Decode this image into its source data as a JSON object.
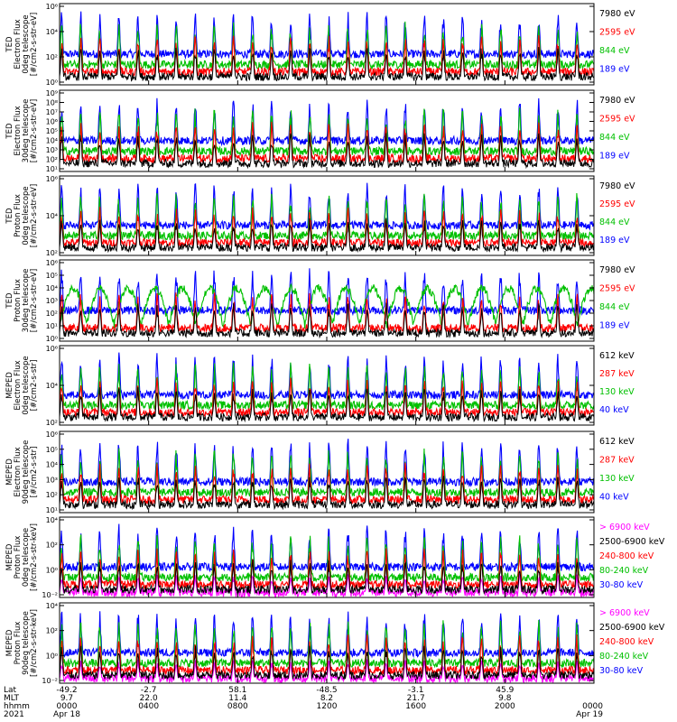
{
  "chart_data": {
    "type": "line",
    "panels": [
      {
        "ylabel_lines": [
          "TED",
          "Electron Flux",
          "0deg telescope",
          "[#/cm2-s-str-eV]"
        ],
        "yticks": [
          "10⁶",
          "10⁴",
          "10²",
          "10⁰"
        ],
        "legend": [
          {
            "text": "7980 eV",
            "color": "#000000"
          },
          {
            "text": "2595 eV",
            "color": "#ff0000"
          },
          {
            "text": "844 eV",
            "color": "#00c000"
          },
          {
            "text": "189 eV",
            "color": "#0000ff"
          }
        ]
      },
      {
        "ylabel_lines": [
          "TED",
          "Electron Flux",
          "30deg telescope",
          "[#/cm2-s-str-eV]"
        ],
        "yticks": [
          "10⁹",
          "10⁸",
          "10⁷",
          "10⁶",
          "10⁵",
          "10⁴",
          "10³",
          "10²",
          "10¹"
        ],
        "legend": [
          {
            "text": "7980 eV",
            "color": "#000000"
          },
          {
            "text": "2595 eV",
            "color": "#ff0000"
          },
          {
            "text": "844 eV",
            "color": "#00c000"
          },
          {
            "text": "189 eV",
            "color": "#0000ff"
          }
        ]
      },
      {
        "ylabel_lines": [
          "TED",
          "Proton Flux",
          "0deg telescope",
          "[#/cm2-s-str-eV]"
        ],
        "yticks": [
          "10⁶",
          "10⁴",
          "10²"
        ],
        "legend": [
          {
            "text": "7980 eV",
            "color": "#000000"
          },
          {
            "text": "2595 eV",
            "color": "#ff0000"
          },
          {
            "text": "844 eV",
            "color": "#00c000"
          },
          {
            "text": "189 eV",
            "color": "#0000ff"
          }
        ]
      },
      {
        "ylabel_lines": [
          "TED",
          "Proton Flux",
          "30deg telescope",
          "[#/cm2-s-str-eV]"
        ],
        "yticks": [
          "10⁶",
          "10⁵",
          "10⁴",
          "10³",
          "10²",
          "10¹",
          "10⁰"
        ],
        "legend": [
          {
            "text": "7980 eV",
            "color": "#000000"
          },
          {
            "text": "2595 eV",
            "color": "#ff0000"
          },
          {
            "text": "844 eV",
            "color": "#00c000"
          },
          {
            "text": "189 eV",
            "color": "#0000ff"
          }
        ]
      },
      {
        "ylabel_lines": [
          "MEPED",
          "Electron Flux",
          "0deg telescope",
          "[#/cm2-s-str]"
        ],
        "yticks": [
          "10⁶",
          "10⁴",
          "10²"
        ],
        "legend": [
          {
            "text": "612 keV",
            "color": "#000000"
          },
          {
            "text": "287 keV",
            "color": "#ff0000"
          },
          {
            "text": "130 keV",
            "color": "#00c000"
          },
          {
            "text": "40 keV",
            "color": "#0000ff"
          }
        ]
      },
      {
        "ylabel_lines": [
          "MEPED",
          "Electron Flux",
          "90deg telescope",
          "[#/cm2-s-str]"
        ],
        "yticks": [
          "10⁶",
          "10⁵",
          "10⁴",
          "10³",
          "10²",
          "10¹"
        ],
        "legend": [
          {
            "text": "612 keV",
            "color": "#000000"
          },
          {
            "text": "287 keV",
            "color": "#ff0000"
          },
          {
            "text": "130 keV",
            "color": "#00c000"
          },
          {
            "text": "40 keV",
            "color": "#0000ff"
          }
        ]
      },
      {
        "ylabel_lines": [
          "MEPED",
          "Proton Flux",
          "0deg telescope",
          "[#/cm2-s-str-keV]"
        ],
        "yticks": [
          "10⁴",
          "10²",
          "10⁰",
          "10⁻²"
        ],
        "legend": [
          {
            "text": "> 6900 keV",
            "color": "#ff00ff"
          },
          {
            "text": "2500-6900 keV",
            "color": "#000000"
          },
          {
            "text": "240-800 keV",
            "color": "#ff0000"
          },
          {
            "text": "80-240 keV",
            "color": "#00c000"
          },
          {
            "text": "30-80 keV",
            "color": "#0000ff"
          }
        ]
      },
      {
        "ylabel_lines": [
          "MEPED",
          "Proton Flux",
          "90deg telescope",
          "[#/cm2-s-str-keV]"
        ],
        "yticks": [
          "10⁴",
          "10²",
          "10⁰",
          "10⁻²"
        ],
        "legend": [
          {
            "text": "> 6900 keV",
            "color": "#ff00ff"
          },
          {
            "text": "2500-6900 keV",
            "color": "#000000"
          },
          {
            "text": "240-800 keV",
            "color": "#ff0000"
          },
          {
            "text": "80-240 keV",
            "color": "#00c000"
          },
          {
            "text": "30-80 keV",
            "color": "#0000ff"
          }
        ]
      }
    ],
    "x_axis": {
      "row_labels": [
        "Lat",
        "MLT",
        "hhmm",
        "2021"
      ],
      "ticks": [
        {
          "lat": "-49.2",
          "mlt": "9.7",
          "hhmm": "0000",
          "date": "Apr 18"
        },
        {
          "lat": "-2.7",
          "mlt": "22.0",
          "hhmm": "0400",
          "date": ""
        },
        {
          "lat": "58.1",
          "mlt": "11.4",
          "hhmm": "0800",
          "date": ""
        },
        {
          "lat": "-48.5",
          "mlt": "8.2",
          "hhmm": "1200",
          "date": ""
        },
        {
          "lat": "-3.1",
          "mlt": "21.7",
          "hhmm": "1600",
          "date": ""
        },
        {
          "lat": "45.9",
          "mlt": "9.8",
          "hhmm": "2000",
          "date": ""
        },
        {
          "lat": "",
          "mlt": "",
          "hhmm": "0000",
          "date": "Apr 19"
        }
      ]
    },
    "orbit_pass_count": 28
  }
}
